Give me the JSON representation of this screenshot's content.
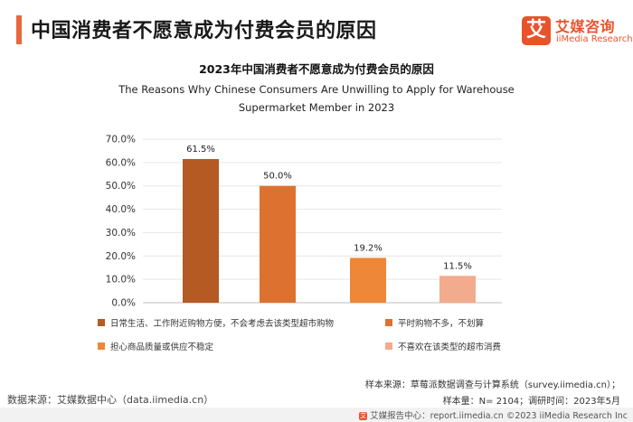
{
  "header": {
    "title": "中国消费者不愿意成为付费会员的原因",
    "logo_mark": "艾",
    "logo_cn": "艾媒咨询",
    "logo_en": "iiMedia Research"
  },
  "chart_data": {
    "type": "bar",
    "title": "2023年中国消费者不愿意成为付费会员的原因",
    "subtitle": "The Reasons Why Chinese Consumers Are Unwilling to Apply for Warehouse Supermarket Member in 2023",
    "subtitle_line1": "The Reasons Why Chinese Consumers Are Unwilling to Apply for Warehouse",
    "subtitle_line2": "Supermarket Member in 2023",
    "xlabel": "",
    "ylabel": "",
    "ylim": [
      0,
      70
    ],
    "yticks": [
      "70.0%",
      "60.0%",
      "50.0%",
      "40.0%",
      "30.0%",
      "20.0%",
      "10.0%",
      "0.0%"
    ],
    "categories": [
      "日常生活、工作附近购物方便，不会考虑去该类型超市购物",
      "平时购物不多，不划算",
      "担心商品质量或供应不稳定",
      "不喜欢在该类型的超市消费"
    ],
    "values": [
      61.5,
      50.0,
      19.2,
      11.5
    ],
    "value_labels": [
      "61.5%",
      "50.0%",
      "19.2%",
      "11.5%"
    ],
    "colors": [
      "#b55a22",
      "#dd7230",
      "#ee8738",
      "#f2ab8c"
    ],
    "grid": true,
    "legend_position": "bottom"
  },
  "footer": {
    "data_source": "数据来源：艾媒数据中心（data.iimedia.cn）",
    "sample_source": "样本来源：草莓派数据调查与计算系统（survey.iimedia.cn）；",
    "sample_size": "样本量：N= 2104；调研时间：2023年5月",
    "copyright": "艾媒报告中心：report.iimedia.cn  ©2023  iiMedia Research  Inc"
  }
}
